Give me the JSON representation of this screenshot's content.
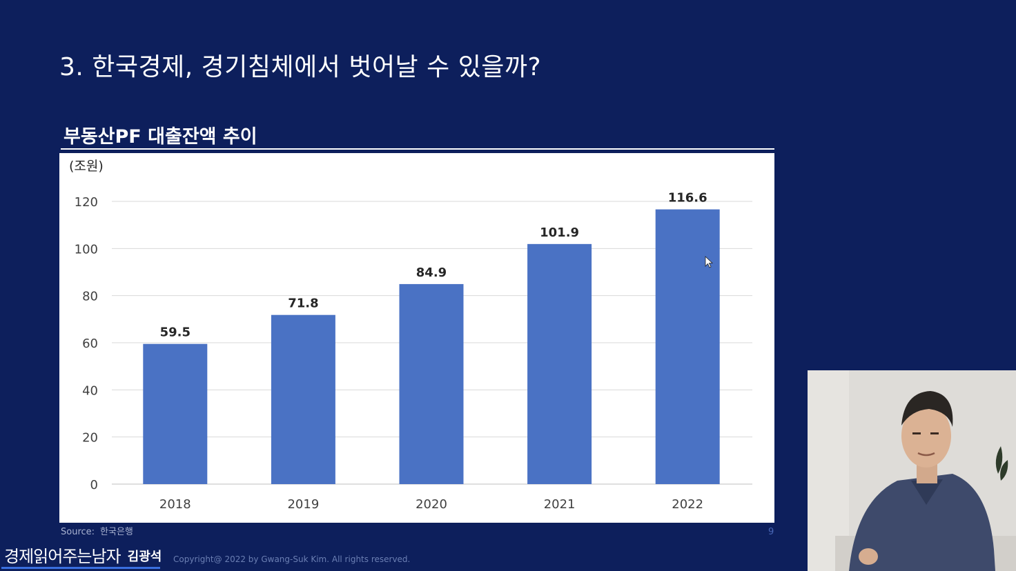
{
  "slide": {
    "title": "3. 한국경제, 경기침체에서 벗어날 수 있을까?",
    "chart_heading": "부동산PF 대출잔액 추이",
    "source_label": "Source:",
    "source_value": "한국은행",
    "page_number": "9"
  },
  "footer": {
    "brand_main": "경제읽어주는남자",
    "brand_name": "김광석",
    "copyright": "Copyright@ 2022 by Gwang-Suk Kim. All rights reserved."
  },
  "colors": {
    "background": "#0d1f5c",
    "bar": "#4a72c4",
    "panel": "#ffffff",
    "grid": "#d9d9d9"
  },
  "chart_data": {
    "type": "bar",
    "unit_label": "(조원)",
    "categories": [
      "2018",
      "2019",
      "2020",
      "2021",
      "2022"
    ],
    "values": [
      59.5,
      71.8,
      84.9,
      101.9,
      116.6
    ],
    "data_labels": [
      "59.5",
      "71.8",
      "84.9",
      "101.9",
      "116.6"
    ],
    "ylim": [
      0,
      120
    ],
    "yticks": [
      0,
      20,
      40,
      60,
      80,
      100,
      120
    ],
    "grid": true,
    "legend": "none"
  },
  "webcam": {
    "icon": "presenter-video-feed"
  }
}
